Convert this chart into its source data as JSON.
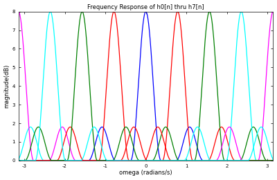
{
  "title": "Frequency Response of h0[n] thru h7[n]",
  "xlabel": "omega (radians/s)",
  "ylabel": "magnitude(dB)",
  "xlim": [
    -3.14159,
    3.14159
  ],
  "ylim": [
    0,
    8
  ],
  "yticks": [
    0,
    1,
    2,
    3,
    4,
    5,
    6,
    7,
    8
  ],
  "xticks": [
    -3,
    -2,
    -1,
    0,
    1,
    2,
    3
  ],
  "xtick_labels": [
    "-3",
    "-2",
    "-1",
    "0",
    "1",
    "2",
    "3"
  ],
  "filter_centers": [
    0.0,
    0.7854,
    1.5708,
    2.3562,
    3.14159,
    -0.7854,
    -1.5708,
    -2.3562
  ],
  "filter_colors": [
    "blue",
    "red",
    "green",
    "cyan",
    "magenta",
    "red",
    "green",
    "cyan"
  ],
  "peak_amplitude": 8.0,
  "sidelobe_amplitude": 1.8,
  "main_bw_factor": 0.42,
  "side_bw_factor": 0.42,
  "background_color": "#ffffff",
  "axes_bg": "#ffffff",
  "linewidth": 0.9
}
